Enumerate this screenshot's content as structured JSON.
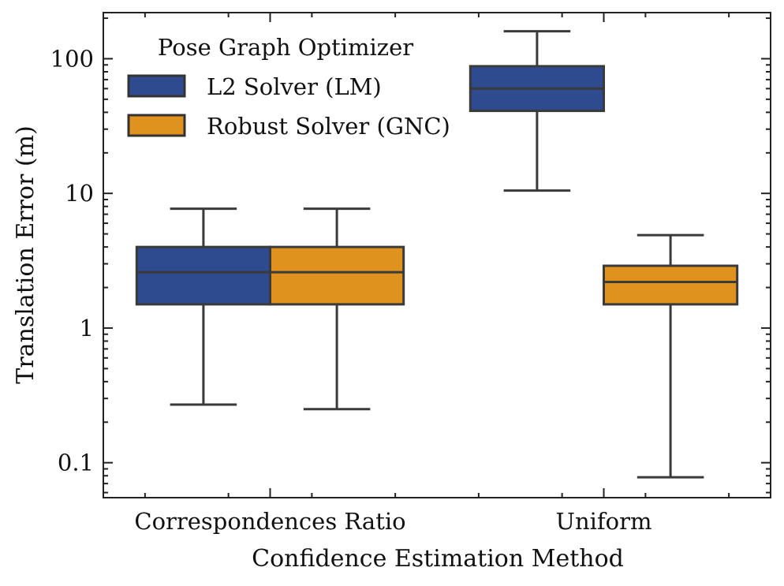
{
  "chart_data": {
    "type": "box",
    "xlabel": "Confidence Estimation Method",
    "ylabel": "Translation Error (m)",
    "yscale": "log",
    "ylim": [
      0.055,
      220
    ],
    "yticks": [
      {
        "value": 0.1,
        "label": "0.1"
      },
      {
        "value": 1,
        "label": "1"
      },
      {
        "value": 10,
        "label": "10"
      },
      {
        "value": 100,
        "label": "100"
      }
    ],
    "categories": [
      "Correspondences Ratio",
      "Uniform"
    ],
    "legend": {
      "title": "Pose Graph Optimizer",
      "placement": "top-left"
    },
    "series": [
      {
        "name": "L2 Solver (LM)",
        "color": "#2f4b8f",
        "boxes": [
          {
            "whisker_low": 0.27,
            "q1": 1.5,
            "median": 2.6,
            "q3": 4.0,
            "whisker_high": 7.7
          },
          {
            "whisker_low": 10.5,
            "q1": 41,
            "median": 60,
            "q3": 88,
            "whisker_high": 160
          }
        ]
      },
      {
        "name": "Robust Solver (GNC)",
        "color": "#e0921e",
        "boxes": [
          {
            "whisker_low": 0.25,
            "q1": 1.5,
            "median": 2.6,
            "q3": 4.0,
            "whisker_high": 7.7
          },
          {
            "whisker_low": 0.078,
            "q1": 1.5,
            "median": 2.2,
            "q3": 2.9,
            "whisker_high": 4.9
          }
        ]
      }
    ]
  }
}
